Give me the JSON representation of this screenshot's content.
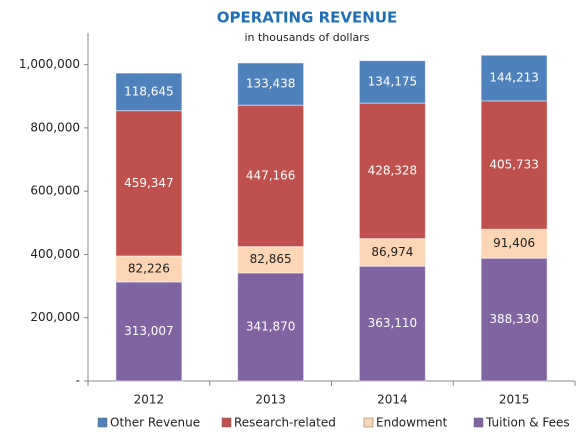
{
  "chart_data": {
    "type": "stacked_bar",
    "title": "OPERATING REVENUE",
    "subtitle": "in thousands of dollars",
    "categories": [
      "2012",
      "2013",
      "2014",
      "2015"
    ],
    "series": [
      {
        "name": "Other Revenue",
        "color": "#4f81bd",
        "label_color": "#ffffff",
        "values": [
          118645,
          133438,
          134175,
          144213
        ],
        "value_labels": [
          "118,645",
          "133,438",
          "134,175",
          "144,213"
        ]
      },
      {
        "name": "Research-related",
        "color": "#c0504d",
        "label_color": "#ffffff",
        "values": [
          459347,
          447166,
          428328,
          405733
        ],
        "value_labels": [
          "459,347",
          "447,166",
          "428,328",
          "405,733"
        ]
      },
      {
        "name": "Endowment",
        "color": "#fcd5b4",
        "label_color": "#222222",
        "values": [
          82226,
          82865,
          86974,
          91406
        ],
        "value_labels": [
          "82,226",
          "82,865",
          "86,974",
          "91,406"
        ]
      },
      {
        "name": "Tuition & Fees",
        "color": "#8064a2",
        "label_color": "#ffffff",
        "values": [
          313007,
          341870,
          363110,
          388330
        ],
        "value_labels": [
          "313,007",
          "341,870",
          "363,110",
          "388,330"
        ]
      }
    ],
    "ylim": [
      0,
      1100000
    ],
    "yticks": [
      {
        "value": 0,
        "label": "-"
      },
      {
        "value": 200000,
        "label": "200,000"
      },
      {
        "value": 400000,
        "label": "400,000"
      },
      {
        "value": 600000,
        "label": "600,000"
      },
      {
        "value": 800000,
        "label": "800,000"
      },
      {
        "value": 1000000,
        "label": "1,000,000"
      }
    ],
    "legend": "bottom"
  }
}
